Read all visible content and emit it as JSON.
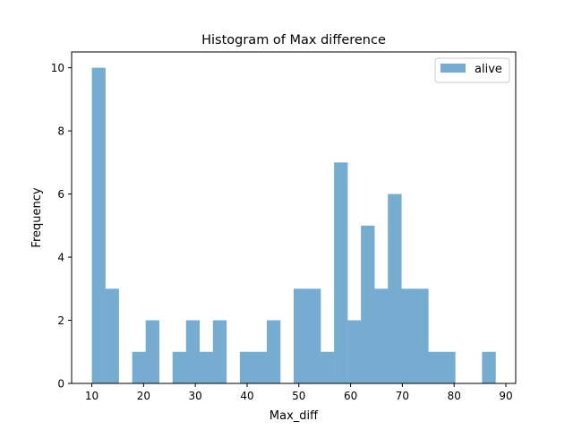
{
  "chart_data": {
    "type": "bar",
    "title": "Histogram of Max difference",
    "xlabel": "Max_diff",
    "ylabel": "Frequency",
    "xlim": [
      6.1,
      91.9
    ],
    "ylim": [
      0,
      10.5
    ],
    "xticks": [
      10,
      20,
      30,
      40,
      50,
      60,
      70,
      80,
      90
    ],
    "yticks": [
      0,
      2,
      4,
      6,
      8,
      10
    ],
    "grid": false,
    "legend_position": "top-right",
    "bin_edges": [
      10,
      12.6,
      15.2,
      17.8,
      20.4,
      23.0,
      25.6,
      28.2,
      30.8,
      33.4,
      36.0,
      38.6,
      41.2,
      43.8,
      46.4,
      49.0,
      51.6,
      54.2,
      56.8,
      59.4,
      62.0,
      64.6,
      67.2,
      69.8,
      72.4,
      75.0,
      77.6,
      80.2,
      82.8,
      85.4,
      88.0
    ],
    "series": [
      {
        "name": "alive",
        "color": "#77acd1",
        "values": [
          10,
          3,
          0,
          1,
          2,
          0,
          1,
          2,
          1,
          2,
          0,
          1,
          1,
          2,
          0,
          3,
          3,
          1,
          7,
          2,
          5,
          3,
          6,
          3,
          3,
          1,
          1,
          0,
          0,
          1
        ]
      }
    ]
  }
}
